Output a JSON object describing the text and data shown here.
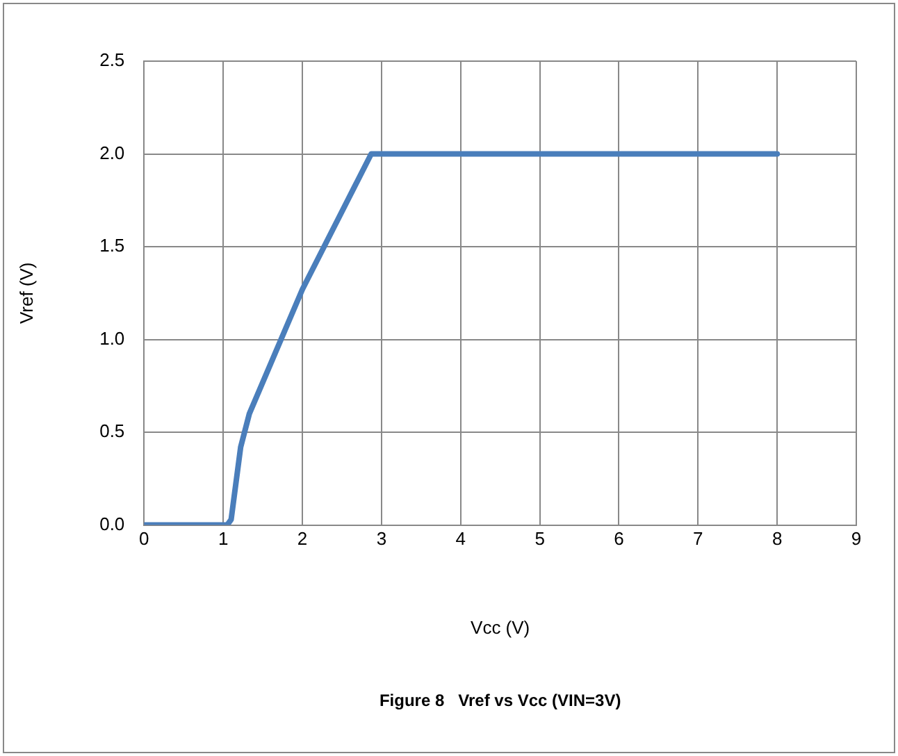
{
  "chart_data": {
    "type": "line",
    "xlabel": "Vcc (V)",
    "ylabel": "Vref (V)",
    "annotations": [
      "Figure 8   Vref vs Vcc (VIN=3V)"
    ],
    "x": [
      0,
      1.05,
      1.1,
      1.22,
      1.33,
      2.0,
      2.87,
      8
    ],
    "series": [
      {
        "color": "#4a7ebb",
        "values": [
          0,
          0,
          0.03,
          0.42,
          0.6,
          1.27,
          2.0,
          2.0
        ]
      }
    ],
    "xlim": [
      0,
      9
    ],
    "xticks": [
      0,
      1,
      2,
      3,
      4,
      5,
      6,
      7,
      8,
      9
    ],
    "ylim": [
      0,
      2.5
    ],
    "yticks": [
      {
        "value": 0,
        "label": "0.0"
      },
      {
        "value": 0.5,
        "label": "0.5"
      },
      {
        "value": 1,
        "label": "1.0"
      },
      {
        "value": 1.5,
        "label": "1.5"
      },
      {
        "value": 2,
        "label": "2.0"
      },
      {
        "value": 2.5,
        "label": "2.5"
      }
    ],
    "grid": true,
    "legend": false,
    "marker": "none",
    "line_style": "solid"
  }
}
